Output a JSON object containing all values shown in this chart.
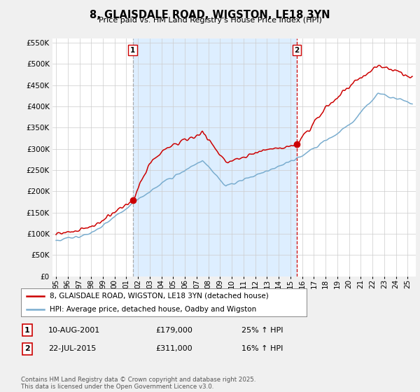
{
  "title": "8, GLAISDALE ROAD, WIGSTON, LE18 3YN",
  "subtitle": "Price paid vs. HM Land Registry's House Price Index (HPI)",
  "red_label": "8, GLAISDALE ROAD, WIGSTON, LE18 3YN (detached house)",
  "blue_label": "HPI: Average price, detached house, Oadby and Wigston",
  "annotation1_date": "10-AUG-2001",
  "annotation1_price": "£179,000",
  "annotation1_hpi": "25% ↑ HPI",
  "annotation2_date": "22-JUL-2015",
  "annotation2_price": "£311,000",
  "annotation2_hpi": "16% ↑ HPI",
  "footer": "Contains HM Land Registry data © Crown copyright and database right 2025.\nThis data is licensed under the Open Government Licence v3.0.",
  "ylim": [
    0,
    560000
  ],
  "yticks": [
    0,
    50000,
    100000,
    150000,
    200000,
    250000,
    300000,
    350000,
    400000,
    450000,
    500000,
    550000
  ],
  "red_color": "#cc0000",
  "blue_color": "#7aadcf",
  "vline1_x": 2001.55,
  "vline2_x": 2015.55,
  "sale1_x": 2001.55,
  "sale1_y": 179000,
  "sale2_x": 2015.55,
  "sale2_y": 311000,
  "background_color": "#f0f0f0",
  "plot_bg_color": "#ffffff",
  "shade_color": "#ddeeff",
  "xmin": 1994.7,
  "xmax": 2025.7
}
